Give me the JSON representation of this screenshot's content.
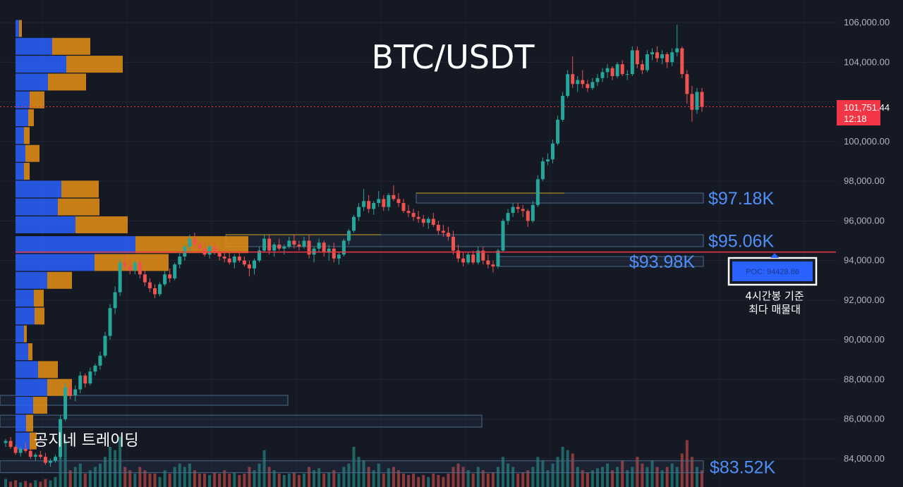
{
  "chart_data": {
    "type": "candlestick",
    "title": "BTC/USDT",
    "y_axis": {
      "ticks": [
        84000,
        86000,
        88000,
        90000,
        92000,
        94000,
        96000,
        98000,
        100000,
        102000,
        104000,
        106000
      ],
      "tick_labels": [
        "84,000.00",
        "86,000.00",
        "88,000.00",
        "90,000.00",
        "92,000.00",
        "94,000.00",
        "96,000.00",
        "98,000.00",
        "100,000.00",
        "",
        "104,000.00",
        "106,000.00"
      ],
      "range": [
        83000,
        107000
      ]
    },
    "grid": true,
    "current_price": {
      "value": 101751.44,
      "label": "101,751.44",
      "countdown": "12:18"
    },
    "poc": {
      "value": 94428.86,
      "label": "POC: 94428.86",
      "note_line1": "4시간봉 기준",
      "note_line2": "최다 매물대"
    },
    "levels": [
      {
        "label": "$97.18K",
        "low": 96900,
        "high": 97400
      },
      {
        "label": "$95.06K",
        "low": 94700,
        "high": 95300
      },
      {
        "label": "$93.98K",
        "low": 93700,
        "high": 94200
      },
      {
        "label": "$83.52K",
        "low": 83300,
        "high": 83900
      }
    ],
    "volume_profile": [
      {
        "price": 105700,
        "buy": 5,
        "sell": 4
      },
      {
        "price": 104800,
        "buy": 52,
        "sell": 54
      },
      {
        "price": 103900,
        "buy": 72,
        "sell": 80
      },
      {
        "price": 103000,
        "buy": 46,
        "sell": 54
      },
      {
        "price": 102100,
        "buy": 20,
        "sell": 21
      },
      {
        "price": 101200,
        "buy": 18,
        "sell": 8
      },
      {
        "price": 100300,
        "buy": 12,
        "sell": 8
      },
      {
        "price": 99400,
        "buy": 14,
        "sell": 20
      },
      {
        "price": 98500,
        "buy": 12,
        "sell": 8
      },
      {
        "price": 97600,
        "buy": 65,
        "sell": 53
      },
      {
        "price": 96700,
        "buy": 60,
        "sell": 59
      },
      {
        "price": 95800,
        "buy": 85,
        "sell": 74
      },
      {
        "price": 94800,
        "buy": 170,
        "sell": 160
      },
      {
        "price": 93900,
        "buy": 112,
        "sell": 105
      },
      {
        "price": 93000,
        "buy": 45,
        "sell": 35
      },
      {
        "price": 92100,
        "buy": 26,
        "sell": 14
      },
      {
        "price": 91200,
        "buy": 27,
        "sell": 14
      },
      {
        "price": 90300,
        "buy": 12,
        "sell": 4
      },
      {
        "price": 89400,
        "buy": 18,
        "sell": 6
      },
      {
        "price": 88500,
        "buy": 32,
        "sell": 28
      },
      {
        "price": 87600,
        "buy": 45,
        "sell": 35
      },
      {
        "price": 86700,
        "buy": 25,
        "sell": 20
      },
      {
        "price": 85800,
        "buy": 15,
        "sell": 10
      },
      {
        "price": 84900,
        "buy": 20,
        "sell": 10
      }
    ],
    "candles": [
      [
        84800,
        85000,
        84600,
        84900
      ],
      [
        84900,
        85100,
        84500,
        84600
      ],
      [
        84600,
        84700,
        84200,
        84300
      ],
      [
        84300,
        84600,
        84100,
        84500
      ],
      [
        84500,
        84800,
        84300,
        84400
      ],
      [
        84400,
        84500,
        84000,
        84100
      ],
      [
        84100,
        84300,
        83900,
        84200
      ],
      [
        84200,
        84400,
        84000,
        84100
      ],
      [
        84100,
        84300,
        83700,
        83800
      ],
      [
        83800,
        84000,
        83600,
        83900
      ],
      [
        83900,
        84200,
        83800,
        84100
      ],
      [
        84100,
        86200,
        84000,
        86000
      ],
      [
        86000,
        87800,
        85900,
        87600
      ],
      [
        87600,
        87900,
        87000,
        87200
      ],
      [
        87200,
        87700,
        86900,
        87500
      ],
      [
        87500,
        88400,
        87300,
        88200
      ],
      [
        88200,
        88300,
        87600,
        87800
      ],
      [
        87800,
        88600,
        87700,
        88400
      ],
      [
        88400,
        88800,
        88200,
        88700
      ],
      [
        88700,
        89400,
        88500,
        89200
      ],
      [
        89200,
        90400,
        89100,
        90200
      ],
      [
        90200,
        91800,
        90000,
        91600
      ],
      [
        91600,
        92700,
        91300,
        92400
      ],
      [
        92400,
        94100,
        92200,
        93900
      ],
      [
        93900,
        94300,
        93500,
        93700
      ],
      [
        93700,
        94100,
        93300,
        93500
      ],
      [
        93500,
        94000,
        93300,
        93900
      ],
      [
        93900,
        94200,
        93100,
        93300
      ],
      [
        93300,
        93500,
        92700,
        92900
      ],
      [
        92900,
        93100,
        92400,
        92600
      ],
      [
        92600,
        92800,
        92100,
        92300
      ],
      [
        92300,
        92900,
        92200,
        92800
      ],
      [
        92800,
        93500,
        92700,
        93300
      ],
      [
        93300,
        93600,
        92900,
        93100
      ],
      [
        93100,
        93900,
        93000,
        93800
      ],
      [
        93800,
        94400,
        93600,
        94200
      ],
      [
        94200,
        94800,
        94000,
        94700
      ],
      [
        94700,
        95300,
        94400,
        95100
      ],
      [
        95100,
        95400,
        94600,
        94800
      ],
      [
        94800,
        95000,
        94400,
        94600
      ],
      [
        94600,
        94900,
        94200,
        94300
      ],
      [
        94300,
        94800,
        94100,
        94700
      ],
      [
        94700,
        94900,
        94300,
        94400
      ],
      [
        94400,
        94600,
        94000,
        94200
      ],
      [
        94200,
        94500,
        93900,
        94100
      ],
      [
        94100,
        94400,
        93800,
        93900
      ],
      [
        93900,
        94300,
        93600,
        94200
      ],
      [
        94200,
        94500,
        93900,
        94000
      ],
      [
        94000,
        94200,
        93700,
        93800
      ],
      [
        93800,
        94000,
        93200,
        93600
      ],
      [
        93600,
        94100,
        93300,
        94000
      ],
      [
        94000,
        94700,
        93900,
        94500
      ],
      [
        94500,
        95300,
        94400,
        95100
      ],
      [
        95100,
        95300,
        94300,
        94500
      ],
      [
        94500,
        94900,
        94200,
        94800
      ],
      [
        94800,
        95100,
        94500,
        94600
      ],
      [
        94600,
        94800,
        94300,
        94700
      ],
      [
        94700,
        95200,
        94600,
        95000
      ],
      [
        95000,
        95300,
        94600,
        94800
      ],
      [
        94800,
        95000,
        94500,
        94700
      ],
      [
        94700,
        95200,
        94600,
        95000
      ],
      [
        95000,
        95300,
        94100,
        94300
      ],
      [
        94300,
        94700,
        93900,
        94600
      ],
      [
        94600,
        95100,
        94400,
        94900
      ],
      [
        94900,
        95000,
        94200,
        94400
      ],
      [
        94400,
        94800,
        94000,
        94600
      ],
      [
        94600,
        94900,
        93900,
        94100
      ],
      [
        94100,
        94400,
        93800,
        94300
      ],
      [
        94300,
        95100,
        94200,
        95000
      ],
      [
        95000,
        95600,
        94800,
        95500
      ],
      [
        95500,
        96300,
        95400,
        96200
      ],
      [
        96200,
        96900,
        96000,
        96700
      ],
      [
        96700,
        97600,
        96500,
        97000
      ],
      [
        97000,
        97300,
        96400,
        96600
      ],
      [
        96600,
        97000,
        96300,
        96900
      ],
      [
        96900,
        97500,
        96700,
        97100
      ],
      [
        97100,
        97300,
        96500,
        96700
      ],
      [
        96700,
        97400,
        96500,
        97300
      ],
      [
        97300,
        97800,
        97000,
        97100
      ],
      [
        97100,
        97400,
        96700,
        96900
      ],
      [
        96900,
        97100,
        96400,
        96500
      ],
      [
        96500,
        96800,
        96200,
        96400
      ],
      [
        96400,
        96600,
        96000,
        96200
      ],
      [
        96200,
        96500,
        95900,
        96100
      ],
      [
        96100,
        96300,
        95700,
        95900
      ],
      [
        95900,
        96200,
        95600,
        96100
      ],
      [
        96100,
        96400,
        95700,
        95800
      ],
      [
        95800,
        96000,
        95300,
        95500
      ],
      [
        95500,
        95800,
        95200,
        95400
      ],
      [
        95400,
        95700,
        95000,
        95200
      ],
      [
        95200,
        95500,
        94300,
        94500
      ],
      [
        94500,
        94800,
        93900,
        94100
      ],
      [
        94100,
        94400,
        93700,
        93900
      ],
      [
        93900,
        94400,
        93800,
        94300
      ],
      [
        94300,
        94500,
        93800,
        93900
      ],
      [
        93900,
        94700,
        93800,
        94500
      ],
      [
        94500,
        94700,
        93800,
        94000
      ],
      [
        94000,
        94300,
        93600,
        93800
      ],
      [
        93800,
        94000,
        93400,
        93700
      ],
      [
        93700,
        94600,
        93600,
        94500
      ],
      [
        94500,
        96100,
        94400,
        96000
      ],
      [
        96000,
        96600,
        95800,
        96400
      ],
      [
        96400,
        96900,
        96200,
        96700
      ],
      [
        96700,
        96900,
        96400,
        96600
      ],
      [
        96600,
        96800,
        96200,
        96500
      ],
      [
        96500,
        96600,
        95700,
        96000
      ],
      [
        96000,
        97000,
        95900,
        96800
      ],
      [
        96800,
        98300,
        96700,
        98100
      ],
      [
        98100,
        99200,
        98000,
        99000
      ],
      [
        99000,
        99400,
        98800,
        99100
      ],
      [
        99100,
        100100,
        98900,
        99900
      ],
      [
        99900,
        101300,
        99800,
        101100
      ],
      [
        101100,
        102500,
        101000,
        102300
      ],
      [
        102300,
        103600,
        102200,
        103400
      ],
      [
        103400,
        104300,
        102700,
        102900
      ],
      [
        102900,
        103300,
        102500,
        103100
      ],
      [
        103100,
        103600,
        102700,
        102900
      ],
      [
        102900,
        103100,
        102500,
        102700
      ],
      [
        102700,
        103200,
        102600,
        103000
      ],
      [
        103000,
        103400,
        102800,
        103200
      ],
      [
        103200,
        103700,
        103000,
        103500
      ],
      [
        103500,
        103900,
        103200,
        103700
      ],
      [
        103700,
        103800,
        103100,
        103300
      ],
      [
        103300,
        104000,
        103200,
        103900
      ],
      [
        103900,
        104100,
        103300,
        103400
      ],
      [
        103400,
        103600,
        103100,
        103400
      ],
      [
        103400,
        104800,
        103300,
        104600
      ],
      [
        104600,
        104800,
        103700,
        103900
      ],
      [
        103900,
        104100,
        103400,
        103600
      ],
      [
        103600,
        104600,
        103500,
        104400
      ],
      [
        104400,
        104700,
        104100,
        104500
      ],
      [
        104500,
        104800,
        104000,
        104200
      ],
      [
        104200,
        104600,
        103900,
        104400
      ],
      [
        104400,
        104500,
        103700,
        104000
      ],
      [
        104000,
        104700,
        103800,
        104500
      ],
      [
        104500,
        105900,
        104300,
        104700
      ],
      [
        104700,
        104800,
        103200,
        103400
      ],
      [
        103400,
        103600,
        101900,
        102400
      ],
      [
        102400,
        102800,
        101000,
        101600
      ],
      [
        101600,
        102700,
        101400,
        102500
      ],
      [
        102500,
        102700,
        101500,
        101750
      ]
    ],
    "volumes": [
      0.12,
      0.08,
      0.1,
      0.07,
      0.09,
      0.06,
      0.1,
      0.08,
      0.12,
      0.1,
      0.15,
      0.85,
      0.7,
      0.25,
      0.3,
      0.35,
      0.2,
      0.25,
      0.3,
      0.35,
      0.45,
      0.6,
      0.55,
      0.75,
      0.3,
      0.25,
      0.2,
      0.3,
      0.25,
      0.2,
      0.2,
      0.15,
      0.25,
      0.2,
      0.3,
      0.35,
      0.3,
      0.35,
      0.25,
      0.2,
      0.2,
      0.18,
      0.22,
      0.2,
      0.25,
      0.2,
      0.22,
      0.18,
      0.2,
      0.3,
      0.25,
      0.35,
      0.55,
      0.3,
      0.25,
      0.2,
      0.18,
      0.2,
      0.22,
      0.18,
      0.2,
      0.3,
      0.25,
      0.28,
      0.2,
      0.22,
      0.25,
      0.2,
      0.3,
      0.35,
      0.6,
      0.45,
      0.4,
      0.3,
      0.25,
      0.35,
      0.2,
      0.28,
      0.3,
      0.25,
      0.2,
      0.18,
      0.2,
      0.15,
      0.18,
      0.15,
      0.2,
      0.18,
      0.15,
      0.2,
      0.3,
      0.35,
      0.3,
      0.25,
      0.2,
      0.3,
      0.25,
      0.2,
      0.22,
      0.3,
      0.45,
      0.35,
      0.3,
      0.2,
      0.22,
      0.25,
      0.3,
      0.45,
      0.4,
      0.25,
      0.35,
      0.45,
      0.6,
      0.55,
      0.5,
      0.3,
      0.25,
      0.22,
      0.25,
      0.28,
      0.3,
      0.35,
      0.25,
      0.3,
      0.4,
      0.25,
      0.3,
      0.45,
      0.35,
      0.3,
      0.4,
      0.3,
      0.25,
      0.3,
      0.35,
      0.3,
      0.5,
      0.7,
      0.45,
      0.3,
      0.25
    ]
  }
}
